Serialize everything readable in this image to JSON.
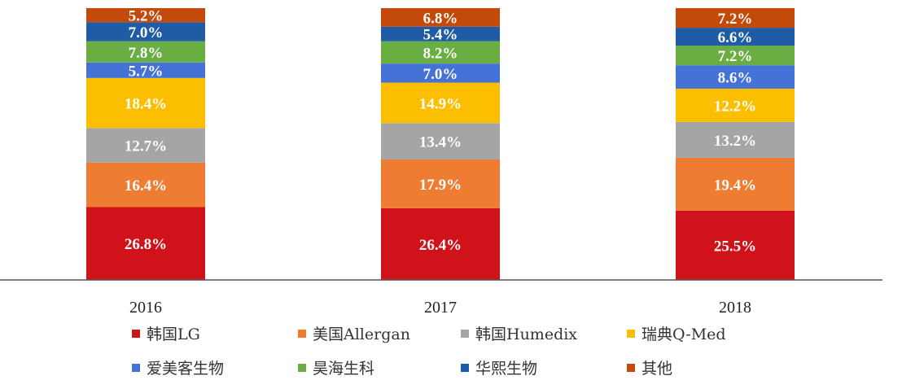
{
  "chart_data": {
    "type": "bar",
    "stacked": true,
    "percent": true,
    "categories": [
      "2016",
      "2017",
      "2018"
    ],
    "series": [
      {
        "name": "韩国LG",
        "color": "#d0121b",
        "values": [
          26.8,
          26.4,
          25.5
        ]
      },
      {
        "name": "美国Allergan",
        "color": "#ee7d33",
        "values": [
          16.4,
          17.9,
          19.4
        ]
      },
      {
        "name": "韩国Humedix",
        "color": "#a5a5a5",
        "values": [
          12.7,
          13.4,
          13.2
        ]
      },
      {
        "name": "瑞典Q-Med",
        "color": "#fbbe00",
        "values": [
          18.4,
          14.9,
          12.2
        ]
      },
      {
        "name": "爱美客生物",
        "color": "#4472d6",
        "values": [
          5.7,
          7.0,
          8.6
        ]
      },
      {
        "name": "昊海生科",
        "color": "#6aad42",
        "values": [
          7.8,
          8.2,
          7.2
        ]
      },
      {
        "name": "华熙生物",
        "color": "#1f5ca5",
        "values": [
          7.0,
          5.4,
          6.6
        ]
      },
      {
        "name": "其他",
        "color": "#c34a0a",
        "values": [
          5.2,
          6.8,
          7.2
        ]
      }
    ],
    "value_labels": [
      [
        "26.8%",
        "26.4%",
        "25.5%"
      ],
      [
        "16.4%",
        "17.9%",
        "19.4%"
      ],
      [
        "12.7%",
        "13.4%",
        "13.2%"
      ],
      [
        "18.4%",
        "14.9%",
        "12.2%"
      ],
      [
        "5.7%",
        "7.0%",
        "8.6%"
      ],
      [
        "7.8%",
        "8.2%",
        "7.2%"
      ],
      [
        "7.0%",
        "5.4%",
        "6.6%"
      ],
      [
        "5.2%",
        "6.8%",
        "7.2%"
      ]
    ],
    "legend_position": "bottom",
    "grid": false
  }
}
